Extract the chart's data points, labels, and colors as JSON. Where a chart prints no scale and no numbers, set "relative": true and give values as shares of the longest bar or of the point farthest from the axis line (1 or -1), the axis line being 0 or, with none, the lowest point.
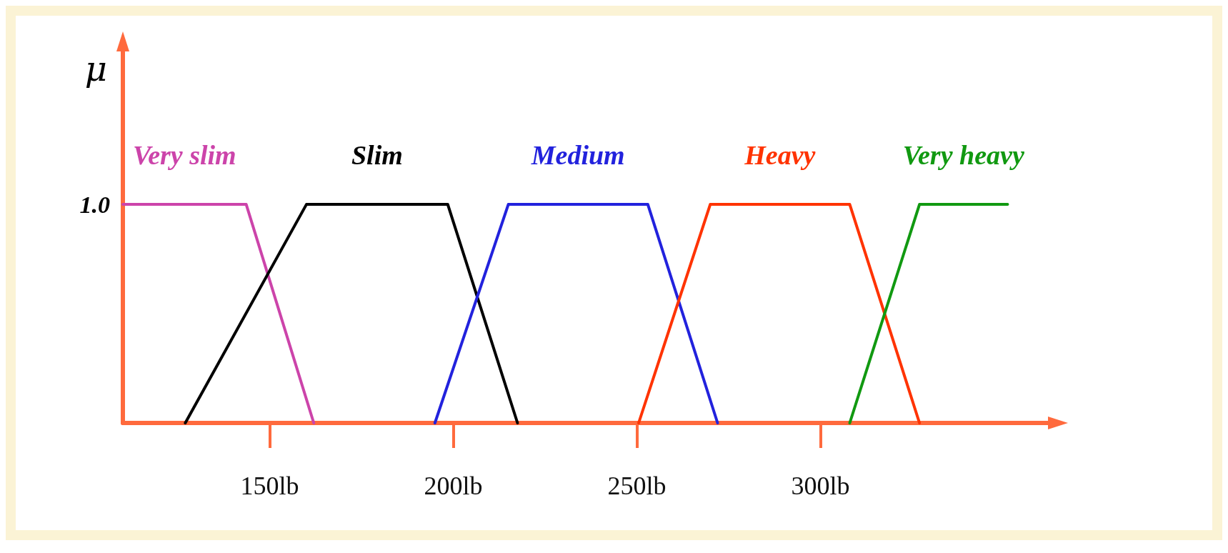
{
  "chart_data": {
    "type": "line",
    "ylabel": "μ",
    "xlim": [
      110,
      362
    ],
    "xticks": [
      {
        "value": 150,
        "label": "150lb"
      },
      {
        "value": 200,
        "label": "200lb"
      },
      {
        "value": 250,
        "label": "250lb"
      },
      {
        "value": 300,
        "label": "300lb"
      }
    ],
    "relative": true,
    "annotations": [
      "1.0"
    ],
    "series": [
      {
        "name": "Very slim",
        "color": "#cc44aa",
        "x": [
          110,
          143.6,
          162
        ],
        "values": [
          1,
          1,
          0
        ]
      },
      {
        "name": "Slim",
        "color": "#000000",
        "x": [
          127,
          160,
          198.5,
          217.5
        ],
        "values": [
          0,
          1,
          1,
          0
        ]
      },
      {
        "name": "Medium",
        "color": "#2222dd",
        "x": [
          195,
          215,
          253,
          272
        ],
        "values": [
          0,
          1,
          1,
          0
        ]
      },
      {
        "name": "Heavy",
        "color": "#ff3300",
        "x": [
          250.5,
          270,
          308,
          327
        ],
        "values": [
          0,
          1,
          1,
          0
        ]
      },
      {
        "name": "Very heavy",
        "color": "#119911",
        "x": [
          308,
          327,
          351
        ],
        "values": [
          0,
          1,
          1
        ]
      }
    ],
    "grid": false,
    "legend": false,
    "marker": "none",
    "line_style": "solid"
  }
}
